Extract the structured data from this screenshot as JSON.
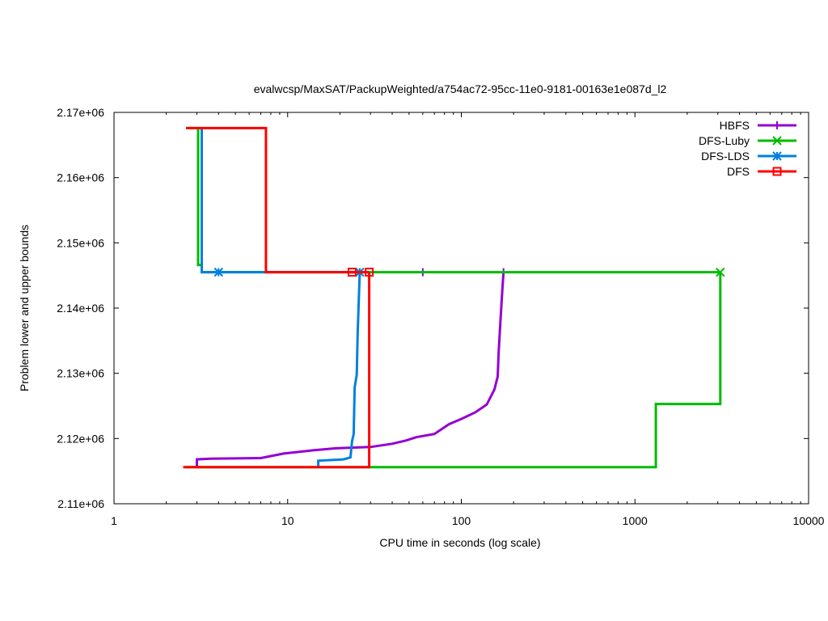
{
  "chart_data": {
    "type": "line",
    "title": "evalwcsp/MaxSAT/PackupWeighted/a754ac72-95cc-11e0-9181-00163e1e087d_l2",
    "xlabel": "CPU time in seconds (log scale)",
    "ylabel": "Problem lower and upper bounds",
    "xscale": "log",
    "xlim": [
      1,
      10000
    ],
    "ylim": [
      2110000,
      2170000
    ],
    "xticks": [
      1,
      10,
      100,
      1000,
      10000
    ],
    "xtick_labels": [
      "1",
      "10",
      "100",
      "1000",
      "10000"
    ],
    "yticks": [
      2110000,
      2120000,
      2130000,
      2140000,
      2150000,
      2160000,
      2170000
    ],
    "ytick_labels": [
      "2.11e+06",
      "2.12e+06",
      "2.13e+06",
      "2.14e+06",
      "2.15e+06",
      "2.16e+06",
      "2.17e+06"
    ],
    "grid": false,
    "legend_position": "top-right",
    "series": [
      {
        "name": "HBFS",
        "color": "#9400d3",
        "marker": "plus",
        "lines": [
          [
            [
              3.0,
              2115600
            ],
            [
              3.0,
              2116800
            ],
            [
              3.6,
              2116900
            ],
            [
              7.0,
              2117000
            ],
            [
              9.5,
              2117700
            ],
            [
              14,
              2118200
            ],
            [
              19,
              2118500
            ],
            [
              30,
              2118700
            ],
            [
              40,
              2119200
            ],
            [
              48,
              2119700
            ],
            [
              55,
              2120200
            ],
            [
              70,
              2120700
            ],
            [
              85,
              2122200
            ],
            [
              100,
              2123000
            ],
            [
              120,
              2124000
            ],
            [
              140,
              2125200
            ],
            [
              155,
              2127500
            ],
            [
              162,
              2129500
            ],
            [
              164,
              2133000
            ],
            [
              168,
              2138000
            ],
            [
              172,
              2142500
            ],
            [
              175,
              2145500
            ]
          ],
          [
            [
              175,
              2145500
            ],
            [
              175,
              2145500
            ]
          ]
        ],
        "markers": [
          [
            60,
            2145500
          ],
          [
            175,
            2145500
          ]
        ]
      },
      {
        "name": "DFS-Luby",
        "color": "#00bb00",
        "marker": "cross",
        "lines": [
          [
            [
              2.6,
              2167600
            ],
            [
              3.05,
              2167600
            ],
            [
              3.05,
              2146600
            ],
            [
              3.2,
              2146600
            ],
            [
              3.2,
              2145500
            ],
            [
              3100,
              2145500
            ]
          ],
          [
            [
              2.6,
              2115600
            ],
            [
              1320,
              2115600
            ],
            [
              1320,
              2125300
            ],
            [
              3100,
              2125300
            ],
            [
              3100,
              2145500
            ]
          ]
        ],
        "markers": [
          [
            3100,
            2145500
          ]
        ]
      },
      {
        "name": "DFS-LDS",
        "color": "#0080e0",
        "marker": "star",
        "lines": [
          [
            [
              3.2,
              2167600
            ],
            [
              3.2,
              2145500
            ],
            [
              26,
              2145500
            ]
          ],
          [
            [
              15,
              2115600
            ],
            [
              15,
              2116600
            ],
            [
              21,
              2116800
            ],
            [
              23,
              2117100
            ],
            [
              23.5,
              2119600
            ],
            [
              24,
              2120700
            ],
            [
              24.3,
              2127800
            ],
            [
              25,
              2129800
            ],
            [
              25.3,
              2136000
            ],
            [
              26,
              2145500
            ]
          ]
        ],
        "markers": [
          [
            4,
            2145500
          ],
          [
            26,
            2145500
          ]
        ]
      },
      {
        "name": "DFS",
        "color": "#ff0000",
        "marker": "square",
        "lines": [
          [
            [
              2.6,
              2167600
            ],
            [
              7.5,
              2167600
            ],
            [
              7.5,
              2145500
            ],
            [
              29.5,
              2145500
            ]
          ],
          [
            [
              2.5,
              2115600
            ],
            [
              29.5,
              2115600
            ],
            [
              29.5,
              2145500
            ]
          ]
        ],
        "markers": [
          [
            23.5,
            2145500
          ],
          [
            29.5,
            2145500
          ]
        ]
      }
    ]
  }
}
